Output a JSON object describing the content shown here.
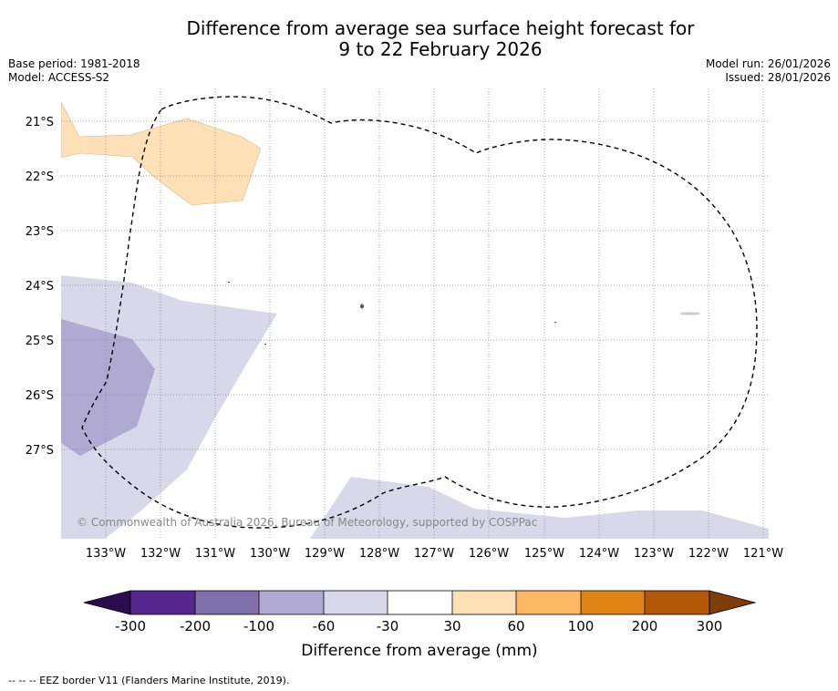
{
  "title_line1": "Difference from average sea surface height forecast for",
  "title_line2": "9 to 22 February 2026",
  "base_period": "Base period: 1981-2018",
  "model": "Model: ACCESS-S2",
  "model_run": "Model run: 26/01/2026",
  "issued": "Issued: 28/01/2026",
  "map": {
    "lat_labels": [
      "21°S",
      "22°S",
      "23°S",
      "24°S",
      "25°S",
      "26°S",
      "27°S"
    ],
    "lon_labels": [
      "133°W",
      "132°W",
      "131°W",
      "130°W",
      "129°W",
      "128°W",
      "127°W",
      "126°W",
      "125°W",
      "124°W",
      "123°W",
      "122°W",
      "121°W"
    ],
    "credit": "© Commonwealth of Australia 2026, Bureau of Meteorology, supported by COSPPac"
  },
  "colorbar": {
    "tick_labels": [
      "-300",
      "-200",
      "-100",
      "-60",
      "-30",
      "30",
      "60",
      "100",
      "200",
      "300"
    ],
    "title": "Difference from average (mm)",
    "colors": [
      "#2d0a4e",
      "#54278f",
      "#7f70ac",
      "#b0aad2",
      "#d8d8ea",
      "#ffffff",
      "#fee0b6",
      "#fdb863",
      "#e08214",
      "#b35806",
      "#7f3b08"
    ]
  },
  "legend_footer": "--  --  -- EEZ border V11 (Flanders Marine Institute, 2019)."
}
